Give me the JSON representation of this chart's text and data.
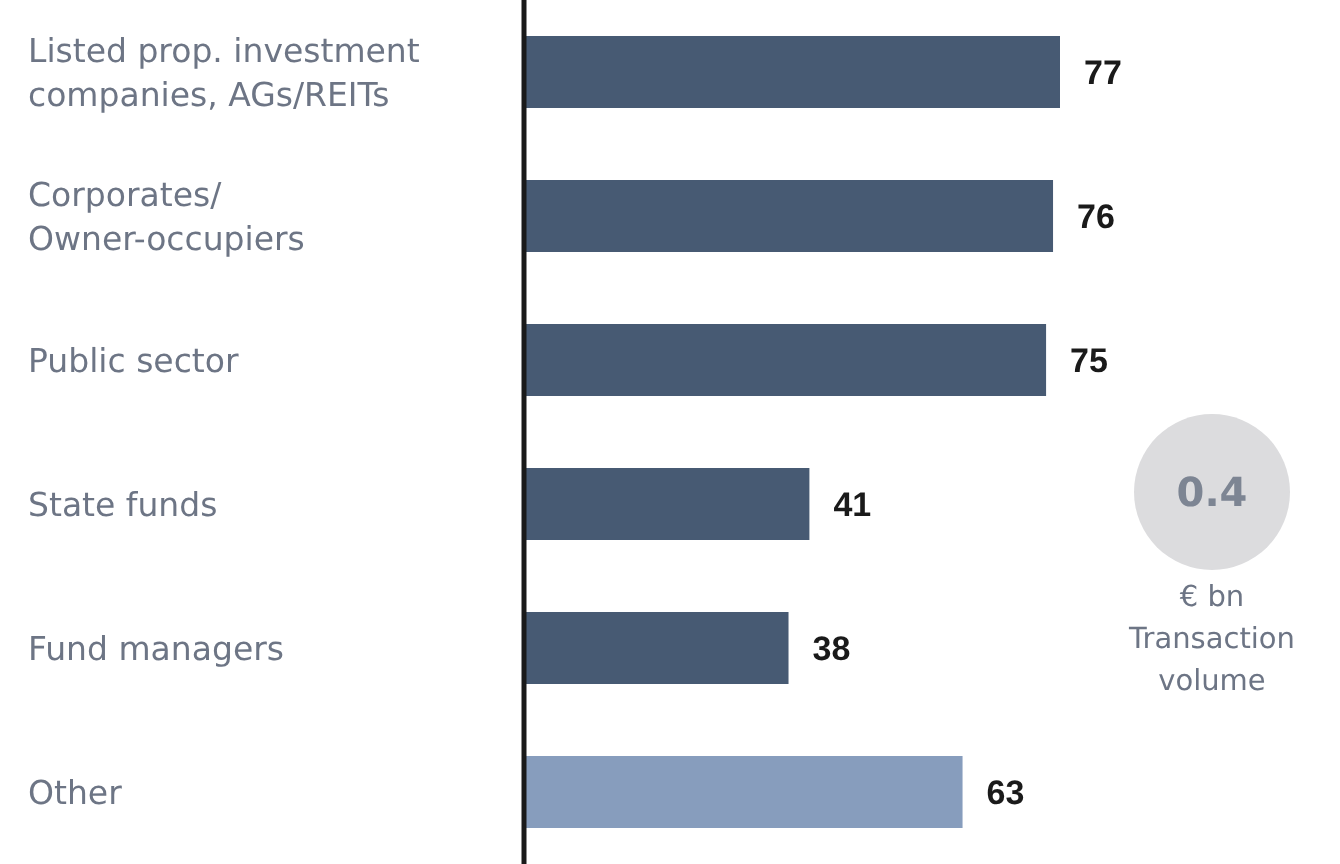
{
  "chart_data": {
    "type": "bar",
    "orientation": "horizontal",
    "categories": [
      "Listed prop. investment companies, AGs/REITs",
      "Corporates/Owner-occupiers",
      "Public sector",
      "State funds",
      "Fund managers",
      "Other"
    ],
    "values": [
      77,
      76,
      75,
      41,
      38,
      63
    ],
    "colors": [
      "#475a73",
      "#475a73",
      "#475a73",
      "#475a73",
      "#475a73",
      "#879dbd"
    ],
    "tick_labels": "y",
    "data_labels": true,
    "annotations": [
      "0.4",
      "€ bn",
      "Transaction volume"
    ]
  }
}
